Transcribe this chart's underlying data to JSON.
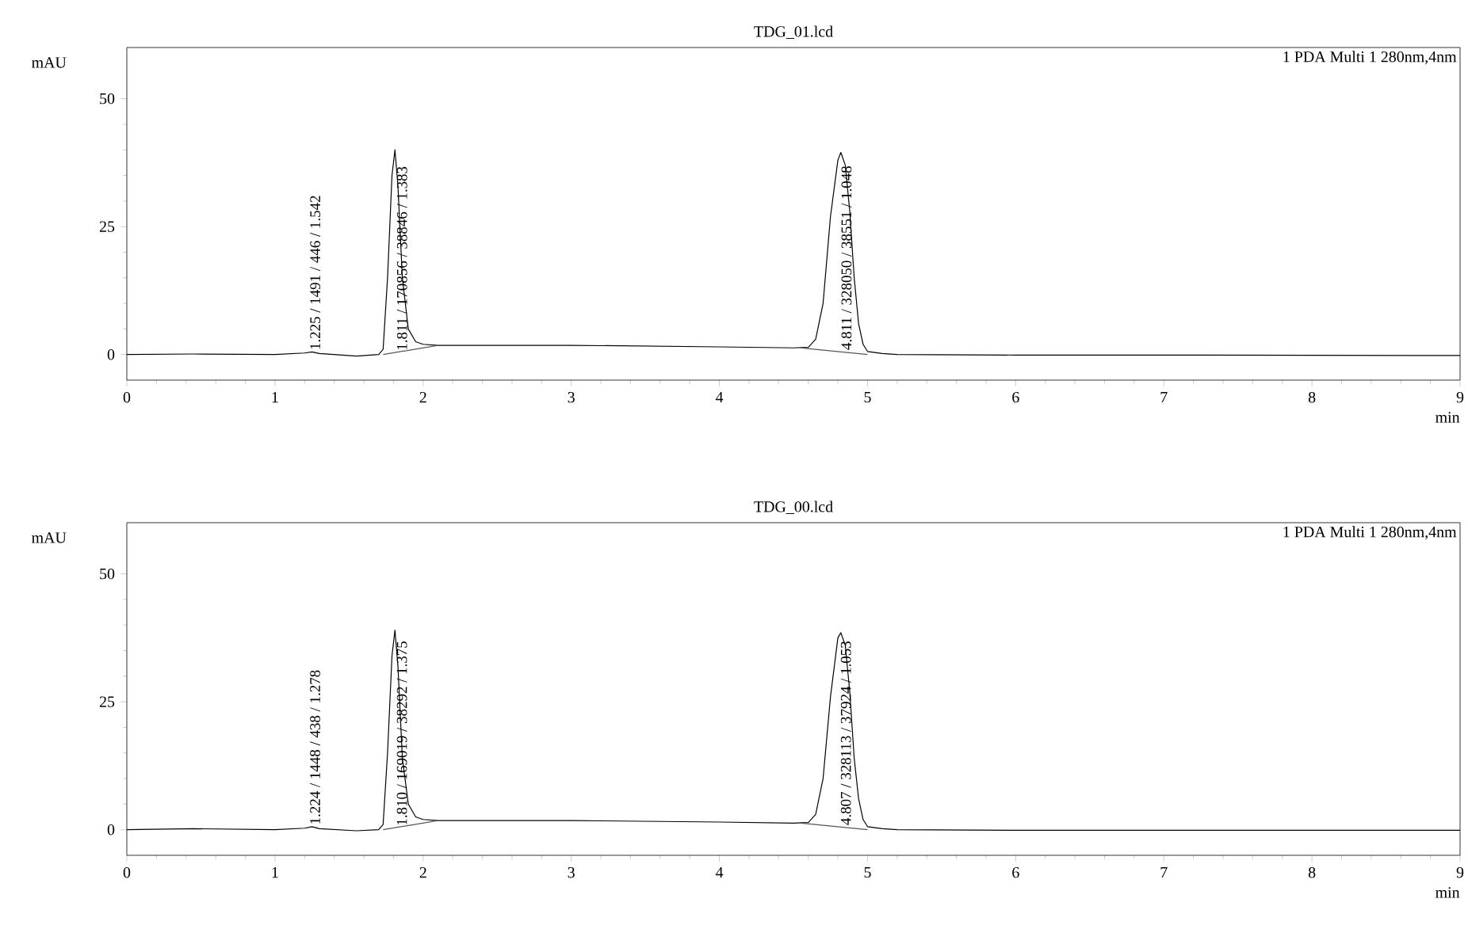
{
  "chart_data": [
    {
      "type": "line",
      "title": "TDG_01.lcd",
      "xlabel": "min",
      "ylabel": "mAU",
      "xlim": [
        0,
        9
      ],
      "ylim": [
        -5,
        60
      ],
      "xticks": [
        0,
        1,
        2,
        3,
        4,
        5,
        6,
        7,
        8,
        9
      ],
      "yticks": [
        0,
        25,
        50
      ],
      "marker": "none",
      "line_style": "solid",
      "annotations": [
        "1 PDA Multi 1 280nm,4nm",
        {
          "text": "1.225 / 1491 / 446 / 1.542",
          "x": 1.225,
          "y": 0.5
        },
        {
          "text": "1.811 / 170856 / 38846 / 1.383",
          "x": 1.811,
          "y": 0.4
        },
        {
          "text": "4.811 / 328050 / 38551 / 1.048",
          "x": 4.811,
          "y": 0.5
        }
      ],
      "series": [
        {
          "color": "#000000",
          "x": [
            0,
            0.45,
            1.0,
            1.2,
            1.25,
            1.3,
            1.55,
            1.7,
            1.73,
            1.76,
            1.79,
            1.81,
            1.83,
            1.86,
            1.9,
            1.95,
            2.0,
            2.1,
            2.5,
            3.0,
            4.0,
            4.5,
            4.6,
            4.65,
            4.7,
            4.75,
            4.8,
            4.82,
            4.85,
            4.88,
            4.91,
            4.94,
            4.97,
            5.0,
            5.1,
            5.2,
            6,
            7,
            9
          ],
          "values": [
            0,
            0.1,
            0,
            0.3,
            0.5,
            0.2,
            -0.3,
            0,
            1,
            15,
            35,
            40,
            33,
            15,
            5,
            2.5,
            2,
            1.8,
            1.8,
            1.8,
            1.5,
            1.3,
            1.4,
            3,
            10,
            27,
            38,
            39.5,
            37,
            28,
            15,
            6,
            2,
            0.6,
            0.2,
            0,
            -0.1,
            -0.1,
            -0.2
          ]
        },
        {
          "color": "#555555",
          "x": [
            1.73,
            2.1
          ],
          "values": [
            0,
            1.8
          ]
        },
        {
          "color": "#555555",
          "x": [
            4.55,
            5.0
          ],
          "values": [
            1.3,
            0
          ]
        }
      ]
    },
    {
      "type": "line",
      "title": "TDG_00.lcd",
      "xlabel": "min",
      "ylabel": "mAU",
      "xlim": [
        0,
        9
      ],
      "ylim": [
        -5,
        60
      ],
      "xticks": [
        0,
        1,
        2,
        3,
        4,
        5,
        6,
        7,
        8,
        9
      ],
      "yticks": [
        0,
        25,
        50
      ],
      "marker": "none",
      "line_style": "solid",
      "annotations": [
        "1 PDA Multi 1 280nm,4nm",
        {
          "text": "1.224 / 1448 / 438 / 1.278",
          "x": 1.224,
          "y": 0.6
        },
        {
          "text": "1.810 / 169019 / 38292 / 1.375",
          "x": 1.81,
          "y": 0.4
        },
        {
          "text": "4.807 / 328113 / 37924 / 1.053",
          "x": 4.807,
          "y": 0.5
        }
      ],
      "series": [
        {
          "color": "#000000",
          "x": [
            0,
            0.45,
            1.0,
            1.2,
            1.25,
            1.3,
            1.55,
            1.7,
            1.73,
            1.76,
            1.79,
            1.81,
            1.83,
            1.86,
            1.9,
            1.95,
            2.0,
            2.1,
            2.5,
            3.0,
            4.0,
            4.5,
            4.6,
            4.65,
            4.7,
            4.75,
            4.8,
            4.82,
            4.85,
            4.88,
            4.91,
            4.94,
            4.97,
            5.0,
            5.1,
            5.2,
            6,
            7,
            9
          ],
          "values": [
            0,
            0.2,
            0,
            0.3,
            0.6,
            0.2,
            -0.2,
            0,
            1,
            15,
            34,
            39,
            32,
            14,
            5,
            2.5,
            2,
            1.8,
            1.8,
            1.8,
            1.5,
            1.3,
            1.4,
            3,
            10,
            26,
            37.5,
            38.5,
            36,
            27,
            14,
            6,
            2,
            0.6,
            0.2,
            0,
            -0.1,
            -0.1,
            -0.1
          ]
        },
        {
          "color": "#555555",
          "x": [
            1.73,
            2.1
          ],
          "values": [
            0,
            1.8
          ]
        },
        {
          "color": "#555555",
          "x": [
            4.55,
            5.0
          ],
          "values": [
            1.3,
            0
          ]
        }
      ]
    }
  ]
}
